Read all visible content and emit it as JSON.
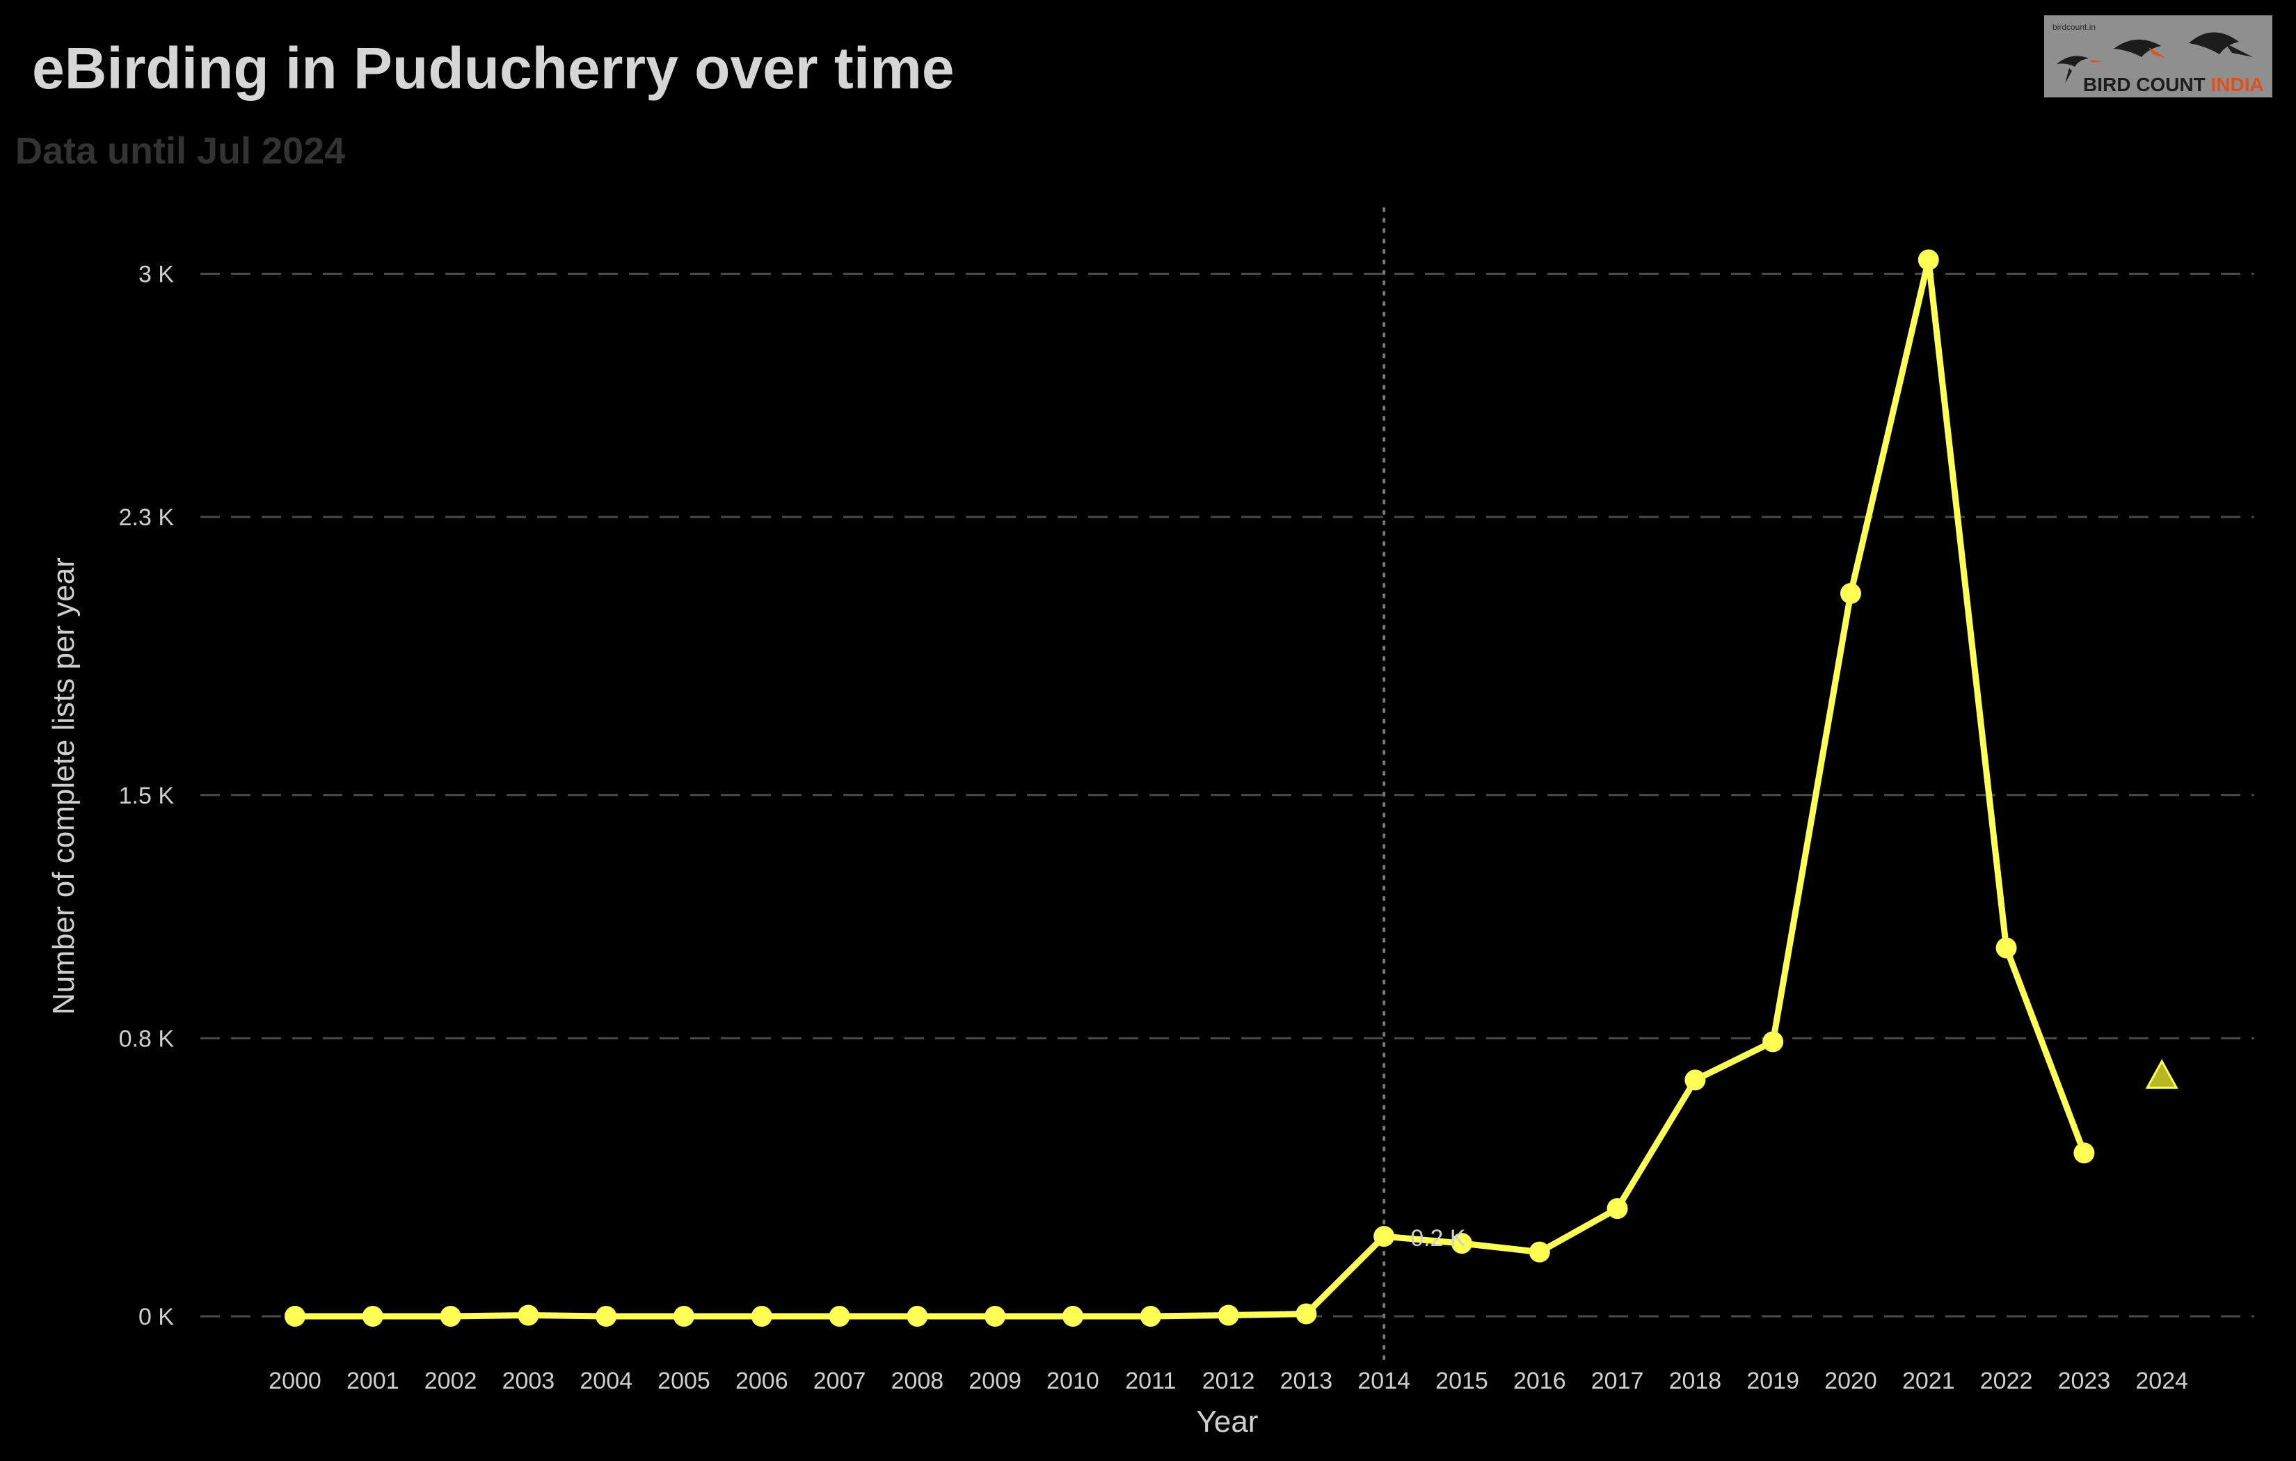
{
  "header": {
    "title": "eBirding in Puducherry over time",
    "subtitle": "Data until Jul 2024"
  },
  "logo": {
    "small_text": "birdcount.in",
    "text_main": "BIRD COUNT ",
    "text_highlight": "INDIA",
    "icon": "flying-birds-logo-icon"
  },
  "colors": {
    "background": "#000000",
    "line": "#ffff55",
    "partial_marker": "#b7b722",
    "grid": "#4a4a4a",
    "reference_line": "#777777"
  },
  "chart_data": {
    "type": "line",
    "title": "eBirding in Puducherry over time",
    "subtitle": "Data until Jul 2024",
    "xlabel": "Year",
    "ylabel": "Number of complete lists per year",
    "ylim": [
      0,
      3.15
    ],
    "y_ticks": [
      {
        "value": 0,
        "label": "0 K"
      },
      {
        "value": 0.8,
        "label": "0.8 K"
      },
      {
        "value": 1.5,
        "label": "1.5 K"
      },
      {
        "value": 2.3,
        "label": "2.3 K"
      },
      {
        "value": 3.0,
        "label": "3 K"
      }
    ],
    "grid": "horizontal dashed",
    "x": [
      "2000",
      "2001",
      "2002",
      "2003",
      "2004",
      "2005",
      "2006",
      "2007",
      "2008",
      "2009",
      "2010",
      "2011",
      "2012",
      "2013",
      "2014",
      "2015",
      "2016",
      "2017",
      "2018",
      "2019",
      "2020",
      "2021",
      "2022",
      "2023",
      "2024"
    ],
    "series": [
      {
        "values": [
          0,
          0,
          0,
          0.003,
          0,
          0,
          0,
          0,
          0,
          0,
          0,
          0,
          0.003,
          0.007,
          0.23,
          0.21,
          0.185,
          0.31,
          0.68,
          0.79,
          2.08,
          3.04,
          1.06,
          0.47,
          null
        ],
        "partial": {
          "x": "2024",
          "value": 0.69,
          "marker": "triangle"
        }
      }
    ],
    "reference_line": {
      "x": "2014",
      "style": "dotted",
      "label": "0.2 K",
      "label_value": 0.23
    }
  }
}
